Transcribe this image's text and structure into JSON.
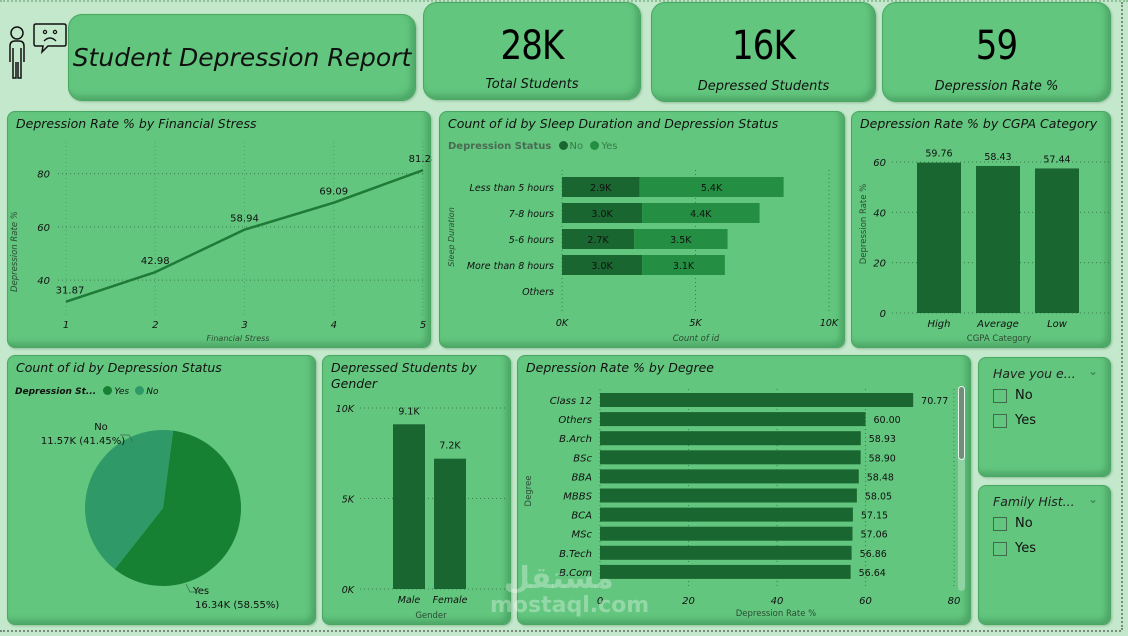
{
  "header": {
    "title": "Student Depression Report",
    "logo_icon": "person-sad-speech-icon"
  },
  "kpis": [
    {
      "value": "28K",
      "label": "Total Students"
    },
    {
      "value": "16K",
      "label": "Depressed Students"
    },
    {
      "value": "59",
      "label": "Depression Rate %"
    }
  ],
  "colors": {
    "background": "#c3e8cb",
    "card": "#62c67e",
    "bar_dark": "#1a6630",
    "bar_yes": "#248f42",
    "pie_yes": "#168132",
    "pie_no": "#2f9a68",
    "line": "#1e7a36"
  },
  "slicers": [
    {
      "title": "Have you e...",
      "options": [
        "No",
        "Yes"
      ]
    },
    {
      "title": "Family Hist...",
      "options": [
        "No",
        "Yes"
      ]
    }
  ],
  "watermark": {
    "arabic": "مستقل",
    "text": "mostaql.com"
  },
  "chart_data": [
    {
      "id": "financial_stress",
      "type": "line",
      "title": "Depression Rate % by Financial Stress",
      "xlabel": "Financial Stress",
      "ylabel": "Depression Rate %",
      "x": [
        "1",
        "2",
        "3",
        "4",
        "5"
      ],
      "values": [
        31.87,
        42.98,
        58.94,
        69.09,
        81.28
      ],
      "labels": [
        "31.87",
        "42.98",
        "58.94",
        "69.09",
        "81.28"
      ],
      "yticks": [
        "40",
        "60",
        "80"
      ],
      "ylim": [
        28,
        90
      ],
      "grid": true
    },
    {
      "id": "sleep_duration",
      "type": "bar",
      "orientation": "horizontal-stacked",
      "title": "Count of id by Sleep Duration and Depression Status",
      "legend_title": "Depression Status",
      "legend": [
        "No",
        "Yes"
      ],
      "categories": [
        "Less than 5 hours",
        "7-8 hours",
        "5-6 hours",
        "More than 8 hours",
        "Others"
      ],
      "series": [
        {
          "name": "No",
          "values": [
            2900,
            3000,
            2700,
            3000,
            0
          ],
          "labels": [
            "2.9K",
            "3.0K",
            "2.7K",
            "3.0K",
            ""
          ]
        },
        {
          "name": "Yes",
          "values": [
            5400,
            4400,
            3500,
            3100,
            0
          ],
          "labels": [
            "5.4K",
            "4.4K",
            "3.5K",
            "3.1K",
            ""
          ]
        }
      ],
      "xlabel": "Count of id",
      "ylabel": "Sleep Duration",
      "xticks": [
        "0K",
        "5K",
        "10K"
      ],
      "xlim": [
        0,
        10000
      ],
      "grid": true
    },
    {
      "id": "cgpa",
      "type": "bar",
      "title": "Depression Rate % by CGPA Category",
      "categories": [
        "High",
        "Average",
        "Low"
      ],
      "values": [
        59.76,
        58.43,
        57.44
      ],
      "labels": [
        "59.76",
        "58.43",
        "57.44"
      ],
      "xlabel": "CGPA Category",
      "ylabel": "Depression Rate %",
      "yticks": [
        "0",
        "20",
        "40",
        "60"
      ],
      "ylim": [
        0,
        60
      ],
      "grid": true
    },
    {
      "id": "depression_status_pie",
      "type": "pie",
      "title": "Count of id by Depression Status",
      "legend_title": "Depression St...",
      "legend": [
        "Yes",
        "No"
      ],
      "slices": [
        {
          "name": "Yes",
          "value": 16340,
          "label": "16.34K (58.55%)",
          "percent": 58.55
        },
        {
          "name": "No",
          "value": 11570,
          "label": "11.57K (41.45%)",
          "percent": 41.45
        }
      ]
    },
    {
      "id": "gender",
      "type": "bar",
      "title": "Depressed Students by Gender",
      "categories": [
        "Male",
        "Female"
      ],
      "values": [
        9100,
        7200
      ],
      "labels": [
        "9.1K",
        "7.2K"
      ],
      "xlabel": "Gender",
      "ylabel": "",
      "yticks": [
        "0K",
        "5K",
        "10K"
      ],
      "ylim": [
        0,
        10000
      ],
      "grid": true
    },
    {
      "id": "degree",
      "type": "bar",
      "orientation": "horizontal",
      "title": "Depression Rate % by Degree",
      "categories": [
        "Class 12",
        "Others",
        "B.Arch",
        "BSc",
        "BBA",
        "MBBS",
        "BCA",
        "MSc",
        "B.Tech",
        "B.Com"
      ],
      "values": [
        70.77,
        60.0,
        58.93,
        58.9,
        58.48,
        58.05,
        57.15,
        57.06,
        56.86,
        56.64
      ],
      "labels": [
        "70.77",
        "60.00",
        "58.93",
        "58.90",
        "58.48",
        "58.05",
        "57.15",
        "57.06",
        "56.86",
        "56.64"
      ],
      "xlabel": "Depression Rate %",
      "ylabel": "Degree",
      "xticks": [
        "0",
        "20",
        "40",
        "60",
        "80"
      ],
      "xlim": [
        0,
        80
      ],
      "grid": true
    }
  ]
}
